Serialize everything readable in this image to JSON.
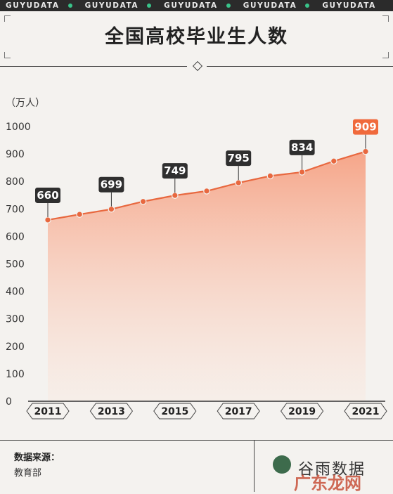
{
  "ticker": {
    "items": [
      "GUYUDATA",
      "GUYUDATA",
      "GUYUDATA",
      "GUYUDATA",
      "GUYUDATA"
    ],
    "dot_color": "#39c48a"
  },
  "title": "全国高校毕业生人数",
  "unit": "（万人）",
  "chart_data": {
    "type": "area",
    "title": "全国高校毕业生人数",
    "ylabel": "（万人）",
    "xlabel": "",
    "x": [
      2011,
      2012,
      2013,
      2014,
      2015,
      2016,
      2017,
      2018,
      2019,
      2020,
      2021
    ],
    "values": [
      660,
      680,
      699,
      727,
      749,
      765,
      795,
      820,
      834,
      874,
      909
    ],
    "x_tick_labels": [
      "2011",
      "2013",
      "2015",
      "2017",
      "2019",
      "2021"
    ],
    "y_ticks": [
      0,
      100,
      200,
      300,
      400,
      500,
      600,
      700,
      800,
      900,
      1000
    ],
    "ylim": [
      0,
      1000
    ],
    "data_labels": [
      {
        "x": 2011,
        "text": "660"
      },
      {
        "x": 2013,
        "text": "699"
      },
      {
        "x": 2015,
        "text": "749"
      },
      {
        "x": 2017,
        "text": "795"
      },
      {
        "x": 2019,
        "text": "834"
      },
      {
        "x": 2021,
        "text": "909",
        "highlight": true
      }
    ],
    "grid": false,
    "line_color": "#e8683f",
    "label_color": "#2f2f2f",
    "highlight_color": "#f06a3c"
  },
  "footer": {
    "source_label": "数据来源：",
    "source_value": "教育部",
    "logo_text": "谷雨数据",
    "watermark": "广东龙网"
  }
}
